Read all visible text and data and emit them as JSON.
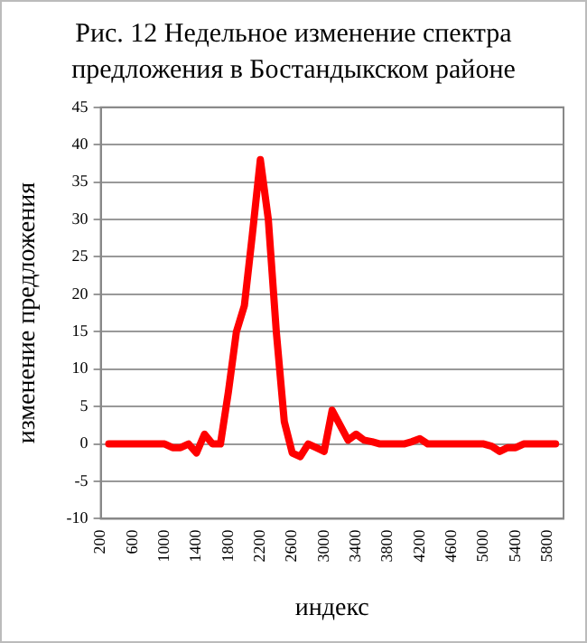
{
  "chart_data": {
    "type": "line",
    "title": "Рис. 12 Недельное изменение спектра предложения в Бостандыкском районе",
    "xlabel": "индекс",
    "ylabel": "изменение предложения",
    "x": [
      300,
      400,
      500,
      600,
      700,
      800,
      900,
      1000,
      1100,
      1200,
      1300,
      1400,
      1500,
      1600,
      1700,
      1800,
      1900,
      2000,
      2100,
      2200,
      2300,
      2400,
      2500,
      2600,
      2700,
      2800,
      2900,
      3000,
      3100,
      3200,
      3300,
      3400,
      3500,
      3600,
      3700,
      3800,
      3900,
      4000,
      4100,
      4200,
      4300,
      4400,
      4500,
      4600,
      4700,
      4800,
      4900,
      5000,
      5100,
      5200,
      5300,
      5400,
      5500,
      5600,
      5700,
      5800,
      5900
    ],
    "series": [
      {
        "color": "#ff0000",
        "values": [
          0,
          0,
          0,
          0,
          0,
          0,
          0,
          0,
          -0.5,
          -0.5,
          0,
          -1.2,
          1.3,
          0,
          0,
          7,
          15,
          18.5,
          28,
          38,
          30,
          15,
          3,
          -1.2,
          -1.7,
          0,
          -0.5,
          -1,
          4.5,
          2.5,
          0.5,
          1.3,
          0.5,
          0.3,
          0,
          0,
          0,
          0,
          0.3,
          0.7,
          0,
          0,
          0,
          0,
          0,
          0,
          0,
          0,
          -0.3,
          -1,
          -0.5,
          -0.5,
          0,
          0,
          0,
          0,
          0
        ]
      }
    ],
    "xlim": [
      200,
      6000
    ],
    "xticks": [
      200,
      600,
      1000,
      1400,
      1800,
      2200,
      2600,
      3000,
      3400,
      3800,
      4200,
      4600,
      5000,
      5400,
      5800
    ],
    "ylim": [
      -10,
      45
    ],
    "yticks": [
      -10,
      -5,
      0,
      5,
      10,
      15,
      20,
      25,
      30,
      35,
      40,
      45
    ],
    "grid": "y",
    "legend": false,
    "marker": "none",
    "line_style": "solid"
  }
}
